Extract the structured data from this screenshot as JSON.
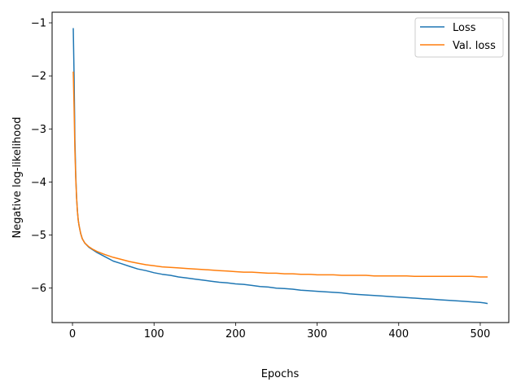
{
  "chart_data": {
    "type": "line",
    "title": "",
    "xlabel": "Epochs",
    "ylabel": "Negative log-likelihood",
    "xlim": [
      -25,
      535
    ],
    "ylim": [
      -6.65,
      -0.8
    ],
    "x_ticks": [
      0,
      100,
      200,
      300,
      400,
      500
    ],
    "x_tick_labels": [
      "0",
      "100",
      "200",
      "300",
      "400",
      "500"
    ],
    "y_ticks": [
      -1,
      -2,
      -3,
      -4,
      -5,
      -6
    ],
    "y_tick_labels": [
      "−1",
      "−2",
      "−3",
      "−4",
      "−5",
      "−6"
    ],
    "grid": false,
    "legend_position": "upper right",
    "series": [
      {
        "name": "Loss",
        "color": "#1f77b4",
        "x": [
          1,
          2,
          3,
          4,
          5,
          6,
          7,
          8,
          10,
          12,
          15,
          20,
          25,
          30,
          40,
          50,
          60,
          70,
          80,
          90,
          100,
          110,
          120,
          130,
          140,
          150,
          160,
          170,
          180,
          190,
          200,
          210,
          220,
          230,
          240,
          250,
          260,
          270,
          280,
          290,
          300,
          310,
          320,
          330,
          340,
          350,
          360,
          370,
          380,
          390,
          400,
          410,
          420,
          430,
          440,
          450,
          460,
          470,
          480,
          490,
          500,
          505,
          509
        ],
        "y": [
          -1.1,
          -2.0,
          -3.2,
          -3.9,
          -4.3,
          -4.55,
          -4.72,
          -4.82,
          -4.97,
          -5.07,
          -5.15,
          -5.23,
          -5.28,
          -5.33,
          -5.41,
          -5.49,
          -5.54,
          -5.59,
          -5.64,
          -5.67,
          -5.71,
          -5.74,
          -5.76,
          -5.79,
          -5.81,
          -5.83,
          -5.85,
          -5.87,
          -5.89,
          -5.9,
          -5.92,
          -5.93,
          -5.95,
          -5.97,
          -5.98,
          -6.0,
          -6.01,
          -6.02,
          -6.04,
          -6.05,
          -6.06,
          -6.07,
          -6.08,
          -6.09,
          -6.11,
          -6.12,
          -6.13,
          -6.14,
          -6.15,
          -6.16,
          -6.17,
          -6.18,
          -6.19,
          -6.2,
          -6.21,
          -6.22,
          -6.23,
          -6.24,
          -6.25,
          -6.26,
          -6.27,
          -6.28,
          -6.29
        ]
      },
      {
        "name": "Val. loss",
        "color": "#ff7f0e",
        "x": [
          1,
          2,
          3,
          4,
          5,
          6,
          7,
          8,
          10,
          12,
          15,
          20,
          25,
          30,
          40,
          50,
          60,
          70,
          80,
          90,
          100,
          110,
          120,
          130,
          140,
          150,
          160,
          170,
          180,
          190,
          200,
          210,
          220,
          230,
          240,
          250,
          260,
          270,
          280,
          290,
          300,
          310,
          320,
          330,
          340,
          350,
          360,
          370,
          380,
          390,
          400,
          410,
          420,
          430,
          440,
          450,
          460,
          470,
          480,
          490,
          500,
          505,
          509
        ],
        "y": [
          -1.92,
          -2.6,
          -3.4,
          -3.95,
          -4.3,
          -4.55,
          -4.72,
          -4.82,
          -4.97,
          -5.07,
          -5.15,
          -5.22,
          -5.27,
          -5.31,
          -5.37,
          -5.42,
          -5.46,
          -5.5,
          -5.53,
          -5.56,
          -5.58,
          -5.6,
          -5.61,
          -5.62,
          -5.63,
          -5.64,
          -5.65,
          -5.66,
          -5.67,
          -5.68,
          -5.69,
          -5.7,
          -5.7,
          -5.71,
          -5.72,
          -5.72,
          -5.73,
          -5.73,
          -5.74,
          -5.74,
          -5.75,
          -5.75,
          -5.75,
          -5.76,
          -5.76,
          -5.76,
          -5.76,
          -5.77,
          -5.77,
          -5.77,
          -5.77,
          -5.77,
          -5.78,
          -5.78,
          -5.78,
          -5.78,
          -5.78,
          -5.78,
          -5.78,
          -5.78,
          -5.79,
          -5.79,
          -5.79
        ]
      }
    ]
  }
}
